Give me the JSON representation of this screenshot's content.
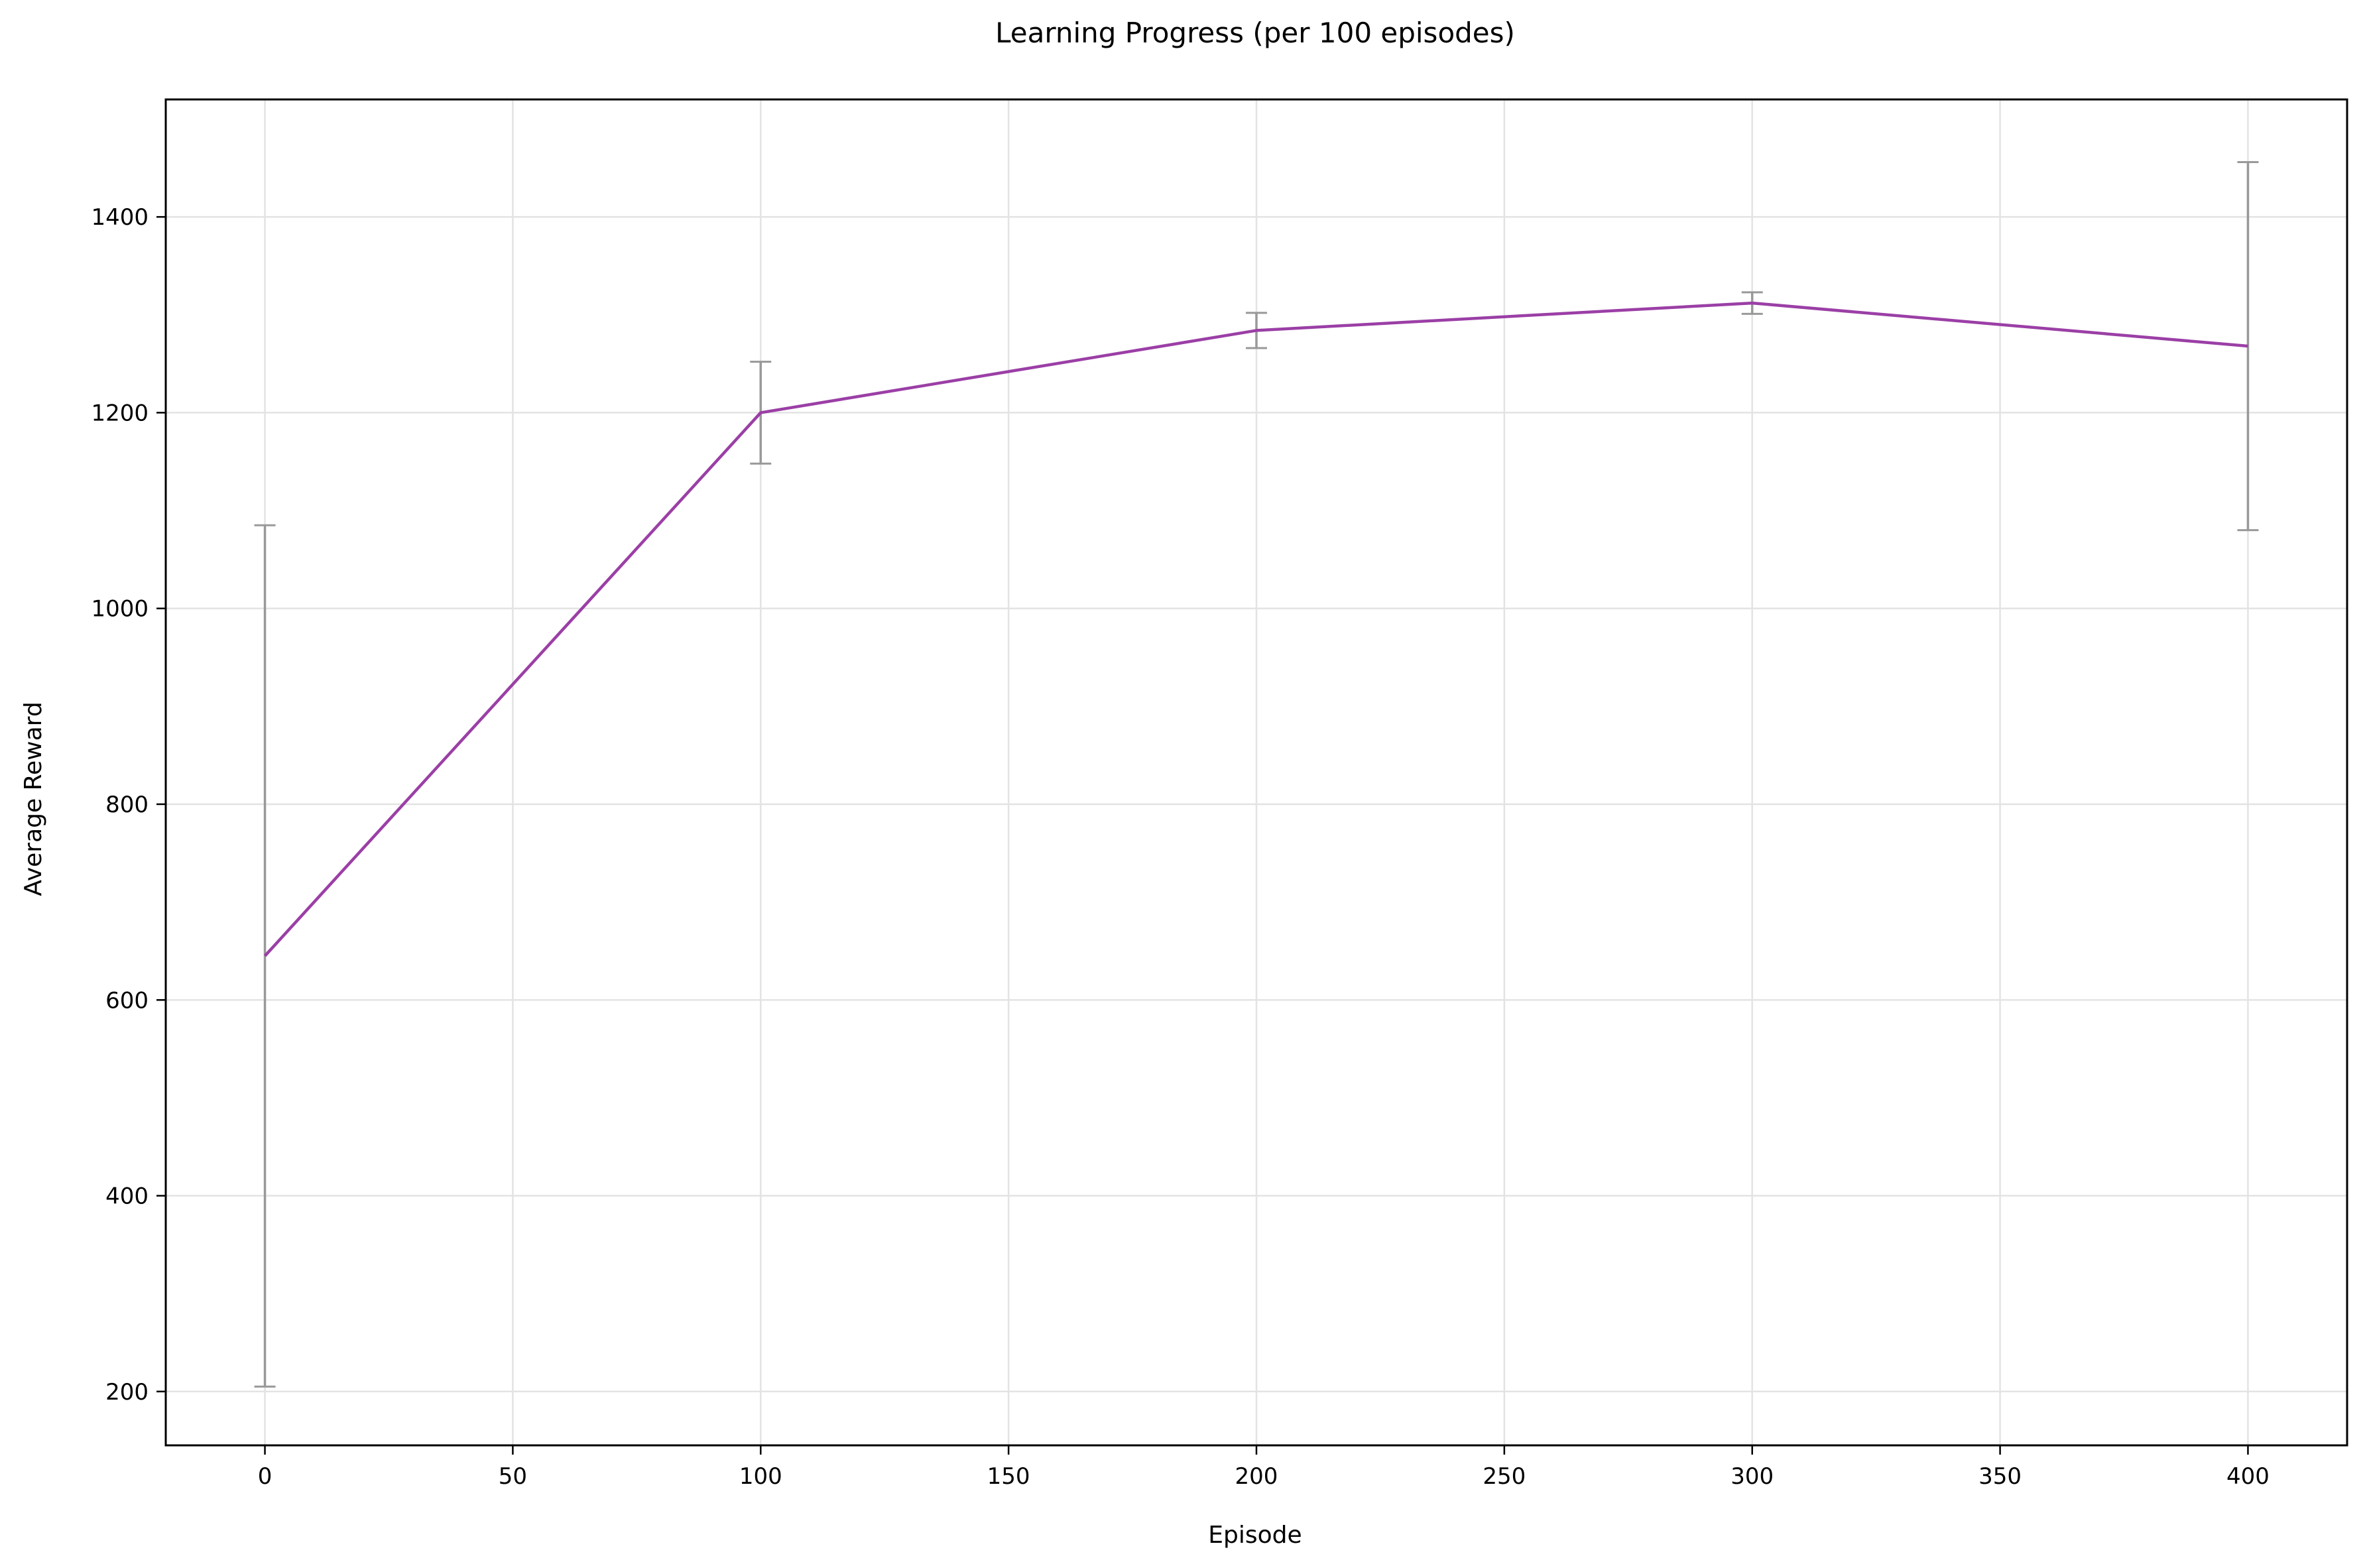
{
  "chart_data": {
    "type": "line",
    "title": "Learning Progress (per 100 episodes)",
    "xlabel": "Episode",
    "ylabel": "Average Reward",
    "xlim": [
      -20,
      420
    ],
    "ylim": [
      145,
      1520
    ],
    "xticks": [
      0,
      50,
      100,
      150,
      200,
      250,
      300,
      350,
      400
    ],
    "yticks": [
      200,
      400,
      600,
      800,
      1000,
      1200,
      1400
    ],
    "grid": true,
    "series": [
      {
        "name": "Average Reward",
        "color": "#9b3fa6",
        "x": [
          0,
          100,
          200,
          300,
          400
        ],
        "values": [
          645,
          1200,
          1284,
          1312,
          1268
        ],
        "error": [
          440,
          52,
          18,
          11,
          188
        ]
      }
    ],
    "errorbar_color": "#999999"
  }
}
